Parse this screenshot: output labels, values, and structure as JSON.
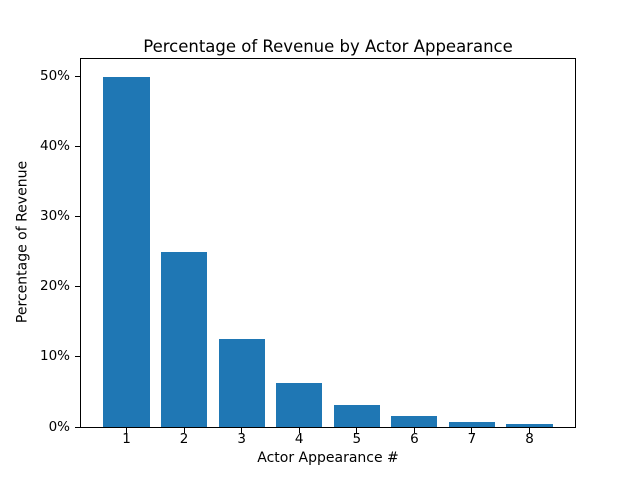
{
  "chart_data": {
    "type": "bar",
    "title": "Percentage of Revenue by Actor Appearance",
    "xlabel": "Actor Appearance #",
    "ylabel": "Percentage of Revenue",
    "categories": [
      "1",
      "2",
      "3",
      "4",
      "5",
      "6",
      "7",
      "8"
    ],
    "x": [
      1,
      2,
      3,
      4,
      5,
      6,
      7,
      8
    ],
    "values": [
      50,
      25,
      12.5,
      6.25,
      3.125,
      1.5625,
      0.78125,
      0.390625
    ],
    "yticks": [
      0,
      10,
      20,
      30,
      40,
      50
    ],
    "ytick_labels": [
      "0%",
      "10%",
      "20%",
      "30%",
      "40%",
      "50%"
    ],
    "xlim": [
      0.21,
      8.79
    ],
    "ylim": [
      0,
      52.5
    ],
    "bar_width": 0.8,
    "bar_color": "#1f77b4",
    "axis_color": "#000000",
    "background_color": "#ffffff",
    "grid": false,
    "legend": null
  }
}
